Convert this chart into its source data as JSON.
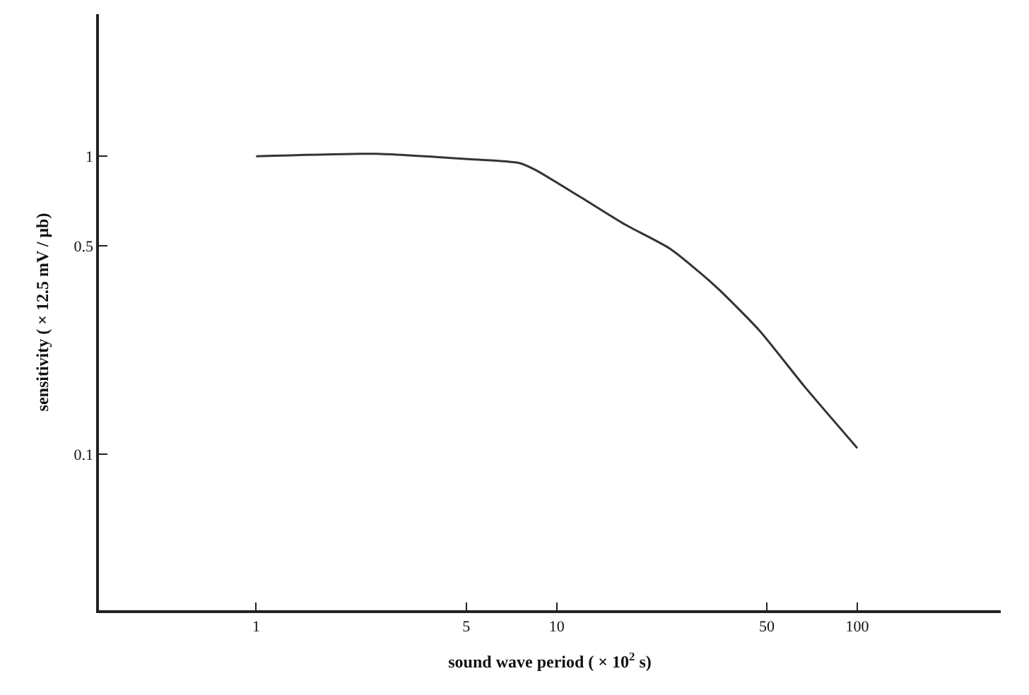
{
  "chart_data": {
    "type": "line",
    "xlabel": "sound wave period ( × 10$^{2}$ s)",
    "ylabel": "sensitivity ( × 12.5 mV / μb)",
    "log": "xy",
    "legend": false,
    "marker": "none",
    "line_style": "solid",
    "xlim": [
      0.3,
      300
    ],
    "ylim": [
      0.03,
      3
    ],
    "xticks": [
      1,
      5,
      10,
      50,
      100
    ],
    "yticks": [
      0.1,
      0.5,
      1
    ],
    "series": [
      {
        "color": "#333333",
        "x": [
          1,
          2.5,
          5,
          7.5,
          8.5,
          12,
          16.9,
          23.8,
          33.4,
          47.3,
          66.4,
          100
        ],
        "values": [
          1.0,
          1.02,
          0.98,
          0.95,
          0.9,
          0.73,
          0.59,
          0.49,
          0.37,
          0.26,
          0.17,
          0.105
        ]
      }
    ]
  }
}
